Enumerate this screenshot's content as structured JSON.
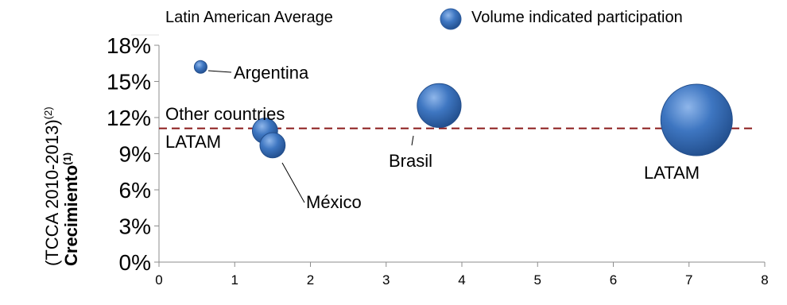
{
  "legend": {
    "average_label": "Latin American Average",
    "bubble_label": "Volume indicated participation"
  },
  "axis": {
    "y_title_bold": "Crecimiento",
    "y_title_bold_sup": "(1)",
    "y_title_sub": "(TCCA 2010-2013)",
    "y_title_sub_sup": "(2)"
  },
  "colors": {
    "bubble": "#3e76c1",
    "bubble_dark": "#234e8c",
    "average_line": "#8b1a1a",
    "axis": "#8c8c8c"
  },
  "chart_data": {
    "type": "scatter",
    "subtype": "bubble",
    "xlim": [
      0,
      8
    ],
    "ylim": [
      0,
      18
    ],
    "x_ticks": [
      0,
      1,
      2,
      3,
      4,
      5,
      6,
      7,
      8
    ],
    "x_tick_labels": [
      "0",
      "1",
      "2",
      "3",
      "4",
      "5",
      "6",
      "7",
      "8"
    ],
    "y_ticks": [
      0,
      3,
      6,
      9,
      12,
      15,
      18
    ],
    "y_tick_labels": [
      "0%",
      "3%",
      "6%",
      "9%",
      "12%",
      "15%",
      "18%"
    ],
    "grid": false,
    "legend_position": "top",
    "reference_lines": [
      {
        "name": "Latin American Average",
        "axis": "y",
        "value": 11.1,
        "style": "dashed"
      }
    ],
    "points": [
      {
        "label": "Argentina",
        "x": 0.55,
        "y": 16.2,
        "size": 1
      },
      {
        "label": "Other countries LATAM",
        "x": 1.4,
        "y": 10.9,
        "size": 4
      },
      {
        "label": "México",
        "x": 1.5,
        "y": 9.7,
        "size": 4
      },
      {
        "label": "Brasil",
        "x": 3.7,
        "y": 13.0,
        "size": 12
      },
      {
        "label": "LATAM",
        "x": 7.1,
        "y": 11.8,
        "size": 32
      }
    ],
    "annotations": {
      "argentina": "Argentina",
      "other_line1": "Other countries",
      "other_line2": "LATAM",
      "mexico": "México",
      "brasil": "Brasil",
      "latam": "LATAM"
    }
  }
}
